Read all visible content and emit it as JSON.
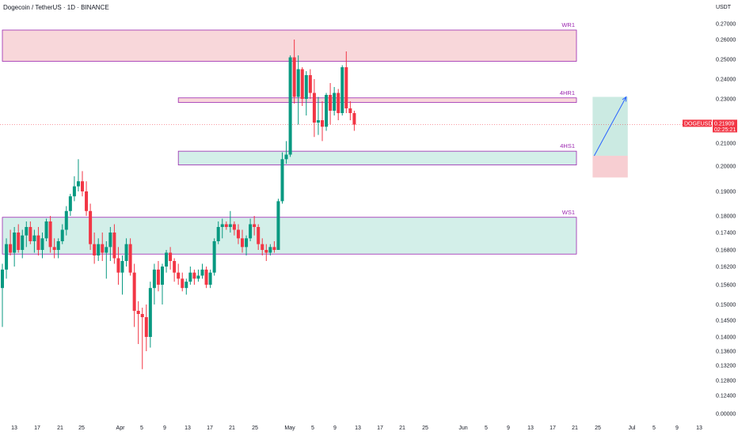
{
  "header": {
    "title": "Dogecoin / TetherUS · 1D · BINANCE",
    "unit": "USDT"
  },
  "colors": {
    "up": "#089981",
    "down": "#f23645",
    "resistance_fill": "#f8d7da",
    "support_fill": "#d3efe9",
    "zone_border": "#9c27b0",
    "projection_line": "#2962ff",
    "price_line": "#f23645",
    "tag_bg": "#f23645"
  },
  "chart_data": {
    "type": "candlestick",
    "symbol": "DOGEUSDT",
    "y_ticks": [
      "0.27000",
      "0.26000",
      "0.25000",
      "0.24000",
      "0.23000",
      "0.22000",
      "0.21000",
      "0.20000",
      "0.19000",
      "0.18000",
      "0.17400",
      "0.16800",
      "0.16200",
      "0.15600",
      "0.15000",
      "0.14500",
      "0.14000",
      "0.13600",
      "0.13200",
      "0.12800",
      "0.12400",
      "0.00000"
    ],
    "x_ticks": [
      "13",
      "17",
      "21",
      "25",
      "Apr",
      "5",
      "9",
      "13",
      "17",
      "21",
      "25",
      "May",
      "5",
      "9",
      "13",
      "17",
      "21",
      "25",
      "Jun",
      "5",
      "9",
      "13",
      "17",
      "21",
      "25",
      "Jul",
      "5",
      "9",
      "13"
    ],
    "last_price": {
      "label": "DOGEUSDT",
      "value": "0.21909",
      "countdown": "02:25:21"
    },
    "zones": [
      {
        "label": "WR1",
        "type": "resistance",
        "low": 0.249,
        "high": 0.266,
        "start": 0,
        "end": 199
      },
      {
        "label": "4HR1",
        "type": "resistance",
        "low": 0.2285,
        "high": 0.2305,
        "start": 44,
        "end": 199
      },
      {
        "label": "4HS1",
        "type": "support",
        "low": 0.2005,
        "high": 0.2065,
        "start": 44,
        "end": 199
      },
      {
        "label": "WS1",
        "type": "support",
        "low": 0.1665,
        "high": 0.1795,
        "start": 0,
        "end": 199
      }
    ],
    "position": {
      "start": 148,
      "end": 156,
      "entry": 0.2045,
      "target": 0.231,
      "stop": 0.1955
    },
    "projection": {
      "from": [
        148,
        0.2045
      ],
      "to": [
        156,
        0.231
      ]
    },
    "candles": [
      {
        "t": 0,
        "o": 0.155,
        "h": 0.163,
        "l": 0.143,
        "c": 0.161
      },
      {
        "t": 1,
        "o": 0.161,
        "h": 0.172,
        "l": 0.158,
        "c": 0.17
      },
      {
        "t": 2,
        "o": 0.17,
        "h": 0.175,
        "l": 0.166,
        "c": 0.167
      },
      {
        "t": 3,
        "o": 0.167,
        "h": 0.176,
        "l": 0.162,
        "c": 0.174
      },
      {
        "t": 4,
        "o": 0.174,
        "h": 0.177,
        "l": 0.167,
        "c": 0.168
      },
      {
        "t": 5,
        "o": 0.168,
        "h": 0.175,
        "l": 0.165,
        "c": 0.173
      },
      {
        "t": 6,
        "o": 0.173,
        "h": 0.178,
        "l": 0.169,
        "c": 0.176
      },
      {
        "t": 7,
        "o": 0.176,
        "h": 0.178,
        "l": 0.17,
        "c": 0.171
      },
      {
        "t": 8,
        "o": 0.171,
        "h": 0.175,
        "l": 0.167,
        "c": 0.173
      },
      {
        "t": 9,
        "o": 0.173,
        "h": 0.176,
        "l": 0.166,
        "c": 0.168
      },
      {
        "t": 10,
        "o": 0.168,
        "h": 0.174,
        "l": 0.165,
        "c": 0.172
      },
      {
        "t": 11,
        "o": 0.172,
        "h": 0.179,
        "l": 0.171,
        "c": 0.178
      },
      {
        "t": 12,
        "o": 0.178,
        "h": 0.18,
        "l": 0.167,
        "c": 0.169
      },
      {
        "t": 13,
        "o": 0.169,
        "h": 0.172,
        "l": 0.165,
        "c": 0.168
      },
      {
        "t": 14,
        "o": 0.168,
        "h": 0.172,
        "l": 0.165,
        "c": 0.171
      },
      {
        "t": 15,
        "o": 0.171,
        "h": 0.177,
        "l": 0.17,
        "c": 0.175
      },
      {
        "t": 16,
        "o": 0.175,
        "h": 0.184,
        "l": 0.173,
        "c": 0.182
      },
      {
        "t": 17,
        "o": 0.182,
        "h": 0.189,
        "l": 0.18,
        "c": 0.188
      },
      {
        "t": 18,
        "o": 0.188,
        "h": 0.196,
        "l": 0.186,
        "c": 0.192
      },
      {
        "t": 19,
        "o": 0.192,
        "h": 0.203,
        "l": 0.19,
        "c": 0.194
      },
      {
        "t": 20,
        "o": 0.194,
        "h": 0.198,
        "l": 0.188,
        "c": 0.19
      },
      {
        "t": 21,
        "o": 0.19,
        "h": 0.194,
        "l": 0.18,
        "c": 0.182
      },
      {
        "t": 22,
        "o": 0.182,
        "h": 0.185,
        "l": 0.168,
        "c": 0.17
      },
      {
        "t": 23,
        "o": 0.17,
        "h": 0.174,
        "l": 0.163,
        "c": 0.166
      },
      {
        "t": 24,
        "o": 0.166,
        "h": 0.172,
        "l": 0.164,
        "c": 0.17
      },
      {
        "t": 25,
        "o": 0.17,
        "h": 0.174,
        "l": 0.164,
        "c": 0.167
      },
      {
        "t": 26,
        "o": 0.167,
        "h": 0.171,
        "l": 0.158,
        "c": 0.169
      },
      {
        "t": 27,
        "o": 0.169,
        "h": 0.176,
        "l": 0.164,
        "c": 0.174
      },
      {
        "t": 28,
        "o": 0.174,
        "h": 0.177,
        "l": 0.163,
        "c": 0.165
      },
      {
        "t": 29,
        "o": 0.165,
        "h": 0.169,
        "l": 0.156,
        "c": 0.16
      },
      {
        "t": 30,
        "o": 0.16,
        "h": 0.166,
        "l": 0.153,
        "c": 0.164
      },
      {
        "t": 31,
        "o": 0.164,
        "h": 0.172,
        "l": 0.162,
        "c": 0.17
      },
      {
        "t": 32,
        "o": 0.17,
        "h": 0.172,
        "l": 0.159,
        "c": 0.16
      },
      {
        "t": 33,
        "o": 0.16,
        "h": 0.163,
        "l": 0.143,
        "c": 0.148
      },
      {
        "t": 34,
        "o": 0.148,
        "h": 0.151,
        "l": 0.138,
        "c": 0.147
      },
      {
        "t": 35,
        "o": 0.147,
        "h": 0.149,
        "l": 0.131,
        "c": 0.146
      },
      {
        "t": 36,
        "o": 0.146,
        "h": 0.15,
        "l": 0.136,
        "c": 0.14
      },
      {
        "t": 37,
        "o": 0.14,
        "h": 0.157,
        "l": 0.137,
        "c": 0.155
      },
      {
        "t": 38,
        "o": 0.155,
        "h": 0.163,
        "l": 0.15,
        "c": 0.161
      },
      {
        "t": 39,
        "o": 0.161,
        "h": 0.164,
        "l": 0.154,
        "c": 0.156
      },
      {
        "t": 40,
        "o": 0.156,
        "h": 0.163,
        "l": 0.15,
        "c": 0.162
      },
      {
        "t": 41,
        "o": 0.162,
        "h": 0.168,
        "l": 0.16,
        "c": 0.167
      },
      {
        "t": 42,
        "o": 0.167,
        "h": 0.169,
        "l": 0.161,
        "c": 0.164
      },
      {
        "t": 43,
        "o": 0.164,
        "h": 0.165,
        "l": 0.157,
        "c": 0.16
      },
      {
        "t": 44,
        "o": 0.16,
        "h": 0.163,
        "l": 0.156,
        "c": 0.158
      },
      {
        "t": 45,
        "o": 0.158,
        "h": 0.16,
        "l": 0.154,
        "c": 0.155
      },
      {
        "t": 46,
        "o": 0.155,
        "h": 0.158,
        "l": 0.153,
        "c": 0.157
      },
      {
        "t": 47,
        "o": 0.157,
        "h": 0.162,
        "l": 0.156,
        "c": 0.16
      },
      {
        "t": 48,
        "o": 0.16,
        "h": 0.161,
        "l": 0.156,
        "c": 0.158
      },
      {
        "t": 49,
        "o": 0.158,
        "h": 0.161,
        "l": 0.157,
        "c": 0.159
      },
      {
        "t": 50,
        "o": 0.159,
        "h": 0.163,
        "l": 0.158,
        "c": 0.161
      },
      {
        "t": 51,
        "o": 0.161,
        "h": 0.162,
        "l": 0.155,
        "c": 0.156
      },
      {
        "t": 52,
        "o": 0.156,
        "h": 0.161,
        "l": 0.155,
        "c": 0.16
      },
      {
        "t": 53,
        "o": 0.16,
        "h": 0.172,
        "l": 0.159,
        "c": 0.171
      },
      {
        "t": 54,
        "o": 0.171,
        "h": 0.178,
        "l": 0.17,
        "c": 0.176
      },
      {
        "t": 55,
        "o": 0.176,
        "h": 0.179,
        "l": 0.172,
        "c": 0.177
      },
      {
        "t": 56,
        "o": 0.177,
        "h": 0.178,
        "l": 0.175,
        "c": 0.176
      },
      {
        "t": 57,
        "o": 0.176,
        "h": 0.182,
        "l": 0.174,
        "c": 0.177
      },
      {
        "t": 58,
        "o": 0.177,
        "h": 0.178,
        "l": 0.173,
        "c": 0.175
      },
      {
        "t": 59,
        "o": 0.175,
        "h": 0.177,
        "l": 0.17,
        "c": 0.172
      },
      {
        "t": 60,
        "o": 0.172,
        "h": 0.175,
        "l": 0.167,
        "c": 0.169
      },
      {
        "t": 61,
        "o": 0.169,
        "h": 0.173,
        "l": 0.166,
        "c": 0.172
      },
      {
        "t": 62,
        "o": 0.172,
        "h": 0.179,
        "l": 0.171,
        "c": 0.177
      },
      {
        "t": 63,
        "o": 0.177,
        "h": 0.18,
        "l": 0.173,
        "c": 0.176
      },
      {
        "t": 64,
        "o": 0.176,
        "h": 0.177,
        "l": 0.168,
        "c": 0.17
      },
      {
        "t": 65,
        "o": 0.17,
        "h": 0.172,
        "l": 0.166,
        "c": 0.168
      },
      {
        "t": 66,
        "o": 0.168,
        "h": 0.17,
        "l": 0.164,
        "c": 0.167
      },
      {
        "t": 67,
        "o": 0.167,
        "h": 0.17,
        "l": 0.166,
        "c": 0.169
      },
      {
        "t": 68,
        "o": 0.169,
        "h": 0.171,
        "l": 0.167,
        "c": 0.168
      },
      {
        "t": 69,
        "o": 0.168,
        "h": 0.187,
        "l": 0.168,
        "c": 0.186
      },
      {
        "t": 70,
        "o": 0.186,
        "h": 0.206,
        "l": 0.185,
        "c": 0.203
      },
      {
        "t": 71,
        "o": 0.203,
        "h": 0.211,
        "l": 0.201,
        "c": 0.205
      },
      {
        "t": 72,
        "o": 0.205,
        "h": 0.252,
        "l": 0.204,
        "c": 0.251
      },
      {
        "t": 73,
        "o": 0.251,
        "h": 0.26,
        "l": 0.228,
        "c": 0.231
      },
      {
        "t": 74,
        "o": 0.231,
        "h": 0.252,
        "l": 0.219,
        "c": 0.245
      },
      {
        "t": 75,
        "o": 0.245,
        "h": 0.246,
        "l": 0.227,
        "c": 0.23
      },
      {
        "t": 76,
        "o": 0.23,
        "h": 0.244,
        "l": 0.223,
        "c": 0.242
      },
      {
        "t": 77,
        "o": 0.242,
        "h": 0.245,
        "l": 0.23,
        "c": 0.233
      },
      {
        "t": 78,
        "o": 0.233,
        "h": 0.24,
        "l": 0.213,
        "c": 0.22
      },
      {
        "t": 79,
        "o": 0.22,
        "h": 0.231,
        "l": 0.214,
        "c": 0.221
      },
      {
        "t": 80,
        "o": 0.221,
        "h": 0.229,
        "l": 0.211,
        "c": 0.218
      },
      {
        "t": 81,
        "o": 0.218,
        "h": 0.233,
        "l": 0.216,
        "c": 0.232
      },
      {
        "t": 82,
        "o": 0.232,
        "h": 0.238,
        "l": 0.219,
        "c": 0.225
      },
      {
        "t": 83,
        "o": 0.225,
        "h": 0.236,
        "l": 0.223,
        "c": 0.233
      },
      {
        "t": 84,
        "o": 0.233,
        "h": 0.235,
        "l": 0.221,
        "c": 0.224
      },
      {
        "t": 85,
        "o": 0.224,
        "h": 0.247,
        "l": 0.223,
        "c": 0.246
      },
      {
        "t": 86,
        "o": 0.246,
        "h": 0.254,
        "l": 0.224,
        "c": 0.226
      },
      {
        "t": 87,
        "o": 0.226,
        "h": 0.229,
        "l": 0.221,
        "c": 0.224
      },
      {
        "t": 88,
        "o": 0.224,
        "h": 0.225,
        "l": 0.216,
        "c": 0.219
      }
    ]
  }
}
